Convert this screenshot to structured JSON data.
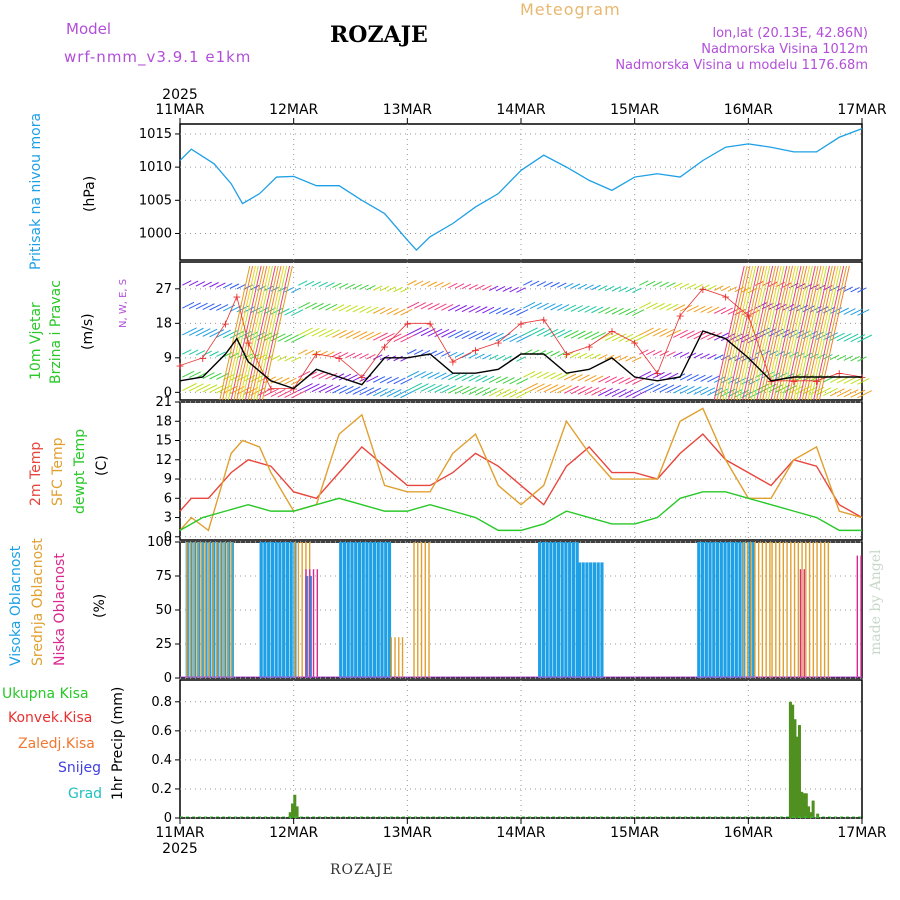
{
  "header": {
    "model_label": "Model",
    "model_name": "wrf-nmm_v3.9.1  e1km",
    "title": "ROZAJE",
    "meteogram": "Meteogram",
    "lonlat": "lon,lat (20.13E, 42.86N)",
    "elevation": "Nadmorska Visina 1012m",
    "model_elevation": "Nadmorska Visina u modelu 1176.68m"
  },
  "footer": {
    "station": "ROZAJE",
    "watermark": "made by Angel"
  },
  "colors": {
    "pressure": "#1ea0e6",
    "temp2m": "#e8463c",
    "sfc": "#e0a030",
    "dew": "#28c828",
    "high_cloud": "#1ea0e6",
    "mid_cloud": "#e0a030",
    "low_cloud": "#d82890",
    "total_precip": "#509020",
    "conv_precip": "#e83030",
    "frz_precip": "#f07830",
    "snow": "#4040e0",
    "hail": "#20c0c0",
    "wind_speed": "#000000",
    "gust": "#e83030"
  },
  "chart_data": [
    {
      "type": "line",
      "panel": "pressure",
      "ylabel": [
        "Pritisak na nivou mora",
        "(hPa)"
      ],
      "yticks": [
        1000,
        1005,
        1010,
        1015
      ],
      "ylim": [
        996,
        1016.5
      ],
      "xlabels_top": [
        "11MAR",
        "12MAR",
        "13MAR",
        "14MAR",
        "15MAR",
        "16MAR",
        "17MAR"
      ],
      "year": "2025",
      "series": [
        {
          "name": "Pritisak na nivou mora",
          "x": [
            0,
            0.1,
            0.3,
            0.45,
            0.55,
            0.7,
            0.85,
            1.0,
            1.2,
            1.4,
            1.6,
            1.8,
            2.0,
            2.08,
            2.2,
            2.4,
            2.6,
            2.8,
            3.0,
            3.2,
            3.4,
            3.6,
            3.8,
            4.0,
            4.2,
            4.4,
            4.6,
            4.8,
            5.0,
            5.2,
            5.4,
            5.6,
            5.8,
            6.0
          ],
          "values": [
            1011,
            1012.7,
            1010.5,
            1007.5,
            1004.5,
            1006,
            1008.5,
            1008.6,
            1007.2,
            1007.2,
            1005,
            1003,
            999,
            997.5,
            999.5,
            1001.5,
            1004,
            1006,
            1009.5,
            1011.8,
            1010,
            1008,
            1006.5,
            1008.5,
            1009,
            1008.5,
            1011,
            1013,
            1013.5,
            1013,
            1012.3,
            1012.3,
            1014.5,
            1015.8
          ]
        }
      ]
    },
    {
      "type": "line",
      "panel": "wind",
      "ylabel": [
        "10m Vjetar",
        "Brzina i Pravac",
        "(m/s)"
      ],
      "compass": "N, W, E, S",
      "yticks": [
        0,
        9,
        18,
        27
      ],
      "ylim": [
        -2,
        34
      ],
      "series": [
        {
          "name": "10m Vjetar",
          "x": [
            0,
            0.2,
            0.4,
            0.5,
            0.6,
            0.8,
            1.0,
            1.2,
            1.4,
            1.6,
            1.8,
            2.0,
            2.2,
            2.4,
            2.6,
            2.8,
            3.0,
            3.2,
            3.4,
            3.6,
            3.8,
            4.0,
            4.2,
            4.4,
            4.6,
            4.8,
            5.0,
            5.2,
            5.4,
            5.6,
            5.8,
            6.0
          ],
          "values": [
            3,
            4,
            10,
            14,
            8,
            3,
            1,
            6,
            4,
            2,
            9,
            9,
            10,
            5,
            5,
            6,
            10,
            10,
            5,
            6,
            9,
            4,
            3,
            4,
            16,
            14,
            9,
            3,
            4,
            4,
            4,
            4
          ]
        },
        {
          "name": "gust",
          "x": [
            0,
            0.2,
            0.4,
            0.5,
            0.6,
            0.8,
            1.0,
            1.2,
            1.4,
            1.6,
            1.8,
            2.0,
            2.2,
            2.4,
            2.6,
            2.8,
            3.0,
            3.2,
            3.4,
            3.6,
            3.8,
            4.0,
            4.2,
            4.4,
            4.6,
            4.8,
            5.0,
            5.2,
            5.4,
            5.6,
            5.8,
            6.0
          ],
          "values": [
            7,
            9,
            18,
            25,
            13,
            1,
            1,
            10,
            9,
            4,
            12,
            18,
            18,
            8,
            11,
            13,
            18,
            19,
            10,
            12,
            16,
            13,
            5,
            20,
            27,
            25,
            20,
            3,
            3,
            3,
            5,
            4
          ]
        }
      ]
    },
    {
      "type": "line",
      "panel": "temperature",
      "ylabel": [
        "2m Temp",
        "SFC Temp",
        "dewpt Temp",
        "(C)"
      ],
      "yticks": [
        0,
        3,
        6,
        9,
        12,
        15,
        18,
        21
      ],
      "ylim": [
        -0.5,
        21
      ],
      "series": [
        {
          "name": "2m Temp",
          "x": [
            0,
            0.1,
            0.25,
            0.45,
            0.6,
            0.8,
            1.0,
            1.2,
            1.4,
            1.6,
            1.8,
            2.0,
            2.2,
            2.4,
            2.6,
            2.8,
            3.0,
            3.2,
            3.4,
            3.6,
            3.8,
            4.0,
            4.2,
            4.4,
            4.6,
            4.8,
            5.0,
            5.2,
            5.4,
            5.6,
            5.8,
            6.0
          ],
          "values": [
            4,
            6,
            6,
            10,
            12,
            11,
            7,
            6,
            10,
            14,
            11,
            8,
            8,
            10,
            13,
            11,
            8,
            5,
            11,
            14,
            10,
            10,
            9,
            13,
            16,
            12,
            10,
            8,
            12,
            11,
            5,
            3
          ]
        },
        {
          "name": "SFC Temp",
          "x": [
            0,
            0.1,
            0.25,
            0.45,
            0.55,
            0.7,
            0.8,
            1.0,
            1.2,
            1.4,
            1.6,
            1.8,
            2.0,
            2.2,
            2.4,
            2.6,
            2.8,
            3.0,
            3.2,
            3.4,
            3.6,
            3.8,
            4.0,
            4.2,
            4.4,
            4.6,
            4.8,
            5.0,
            5.2,
            5.4,
            5.6,
            5.8,
            6.0
          ],
          "values": [
            1,
            3,
            1,
            13,
            15,
            14,
            10,
            4,
            5,
            16,
            19,
            8,
            7,
            7,
            13,
            16,
            8,
            5,
            8,
            18,
            13,
            9,
            9,
            9,
            18,
            20,
            12,
            6,
            6,
            12,
            14,
            4,
            3
          ]
        },
        {
          "name": "dewpt Temp",
          "x": [
            0,
            0.2,
            0.4,
            0.6,
            0.8,
            1.0,
            1.2,
            1.4,
            1.6,
            1.8,
            2.0,
            2.2,
            2.4,
            2.6,
            2.8,
            3.0,
            3.2,
            3.4,
            3.6,
            3.8,
            4.0,
            4.2,
            4.4,
            4.6,
            4.8,
            5.0,
            5.2,
            5.4,
            5.6,
            5.8,
            6.0
          ],
          "values": [
            1,
            3,
            4,
            5,
            4,
            4,
            5,
            6,
            5,
            4,
            4,
            5,
            4,
            3,
            1,
            1,
            2,
            4,
            3,
            2,
            2,
            3,
            6,
            7,
            7,
            6,
            5,
            4,
            3,
            1,
            1
          ]
        }
      ]
    },
    {
      "type": "bar",
      "panel": "clouds",
      "ylabel": [
        "Visoka Oblacnost",
        "Srednja Oblacnost",
        "Niska Oblacnost",
        "(%)"
      ],
      "yticks": [
        0,
        25,
        50,
        75,
        100
      ],
      "ylim": [
        0,
        100
      ],
      "series": [
        {
          "name": "Visoka Oblacnost",
          "x_ranges": [
            [
              0.05,
              0.45
            ],
            [
              0.7,
              1.0
            ],
            [
              1.1,
              1.15
            ],
            [
              1.4,
              1.85
            ],
            [
              3.15,
              3.5
            ],
            [
              3.5,
              3.7
            ],
            [
              4.55,
              4.95
            ],
            [
              5.0,
              5.05
            ]
          ],
          "values": [
            100,
            100,
            75,
            100,
            100,
            85,
            100,
            100
          ]
        },
        {
          "name": "Srednja Oblacnost",
          "x_ranges": [
            [
              0.05,
              0.45
            ],
            [
              1.0,
              1.15
            ],
            [
              1.85,
              1.95
            ],
            [
              2.05,
              2.2
            ],
            [
              4.95,
              5.2
            ],
            [
              5.2,
              5.7
            ]
          ],
          "values": [
            100,
            100,
            30,
            100,
            100,
            100
          ]
        },
        {
          "name": "Niska Oblacnost",
          "x_ranges": [
            [
              1.1,
              1.2
            ],
            [
              5.45,
              5.5
            ],
            [
              5.95,
              6.0
            ]
          ],
          "values": [
            80,
            80,
            90
          ]
        }
      ]
    },
    {
      "type": "bar",
      "panel": "precip",
      "ylabel": [
        "1hr Precip (mm)"
      ],
      "legend": [
        "Ukupna Kisa",
        "Konvek.Kisa",
        "Zaledj.Kisa",
        "Snijeg",
        "Grad"
      ],
      "yticks": [
        0,
        0.2,
        0.4,
        0.6,
        0.8
      ],
      "ylim": [
        0,
        0.95
      ],
      "xlabels_bottom": [
        "11MAR",
        "12MAR",
        "13MAR",
        "14MAR",
        "15MAR",
        "16MAR",
        "17MAR"
      ],
      "year": "2025",
      "series": [
        {
          "name": "Ukupna Kisa",
          "x": [
            0.97,
            0.99,
            1.01,
            1.03,
            5.37,
            5.39,
            5.41,
            5.43,
            5.45,
            5.47,
            5.49,
            5.51,
            5.53,
            5.55,
            5.57,
            5.61
          ],
          "values": [
            0.04,
            0.1,
            0.16,
            0.08,
            0.8,
            0.78,
            0.68,
            0.56,
            0.64,
            0.18,
            0.17,
            0.17,
            0.08,
            0.04,
            0.12,
            0.03
          ]
        }
      ]
    }
  ]
}
